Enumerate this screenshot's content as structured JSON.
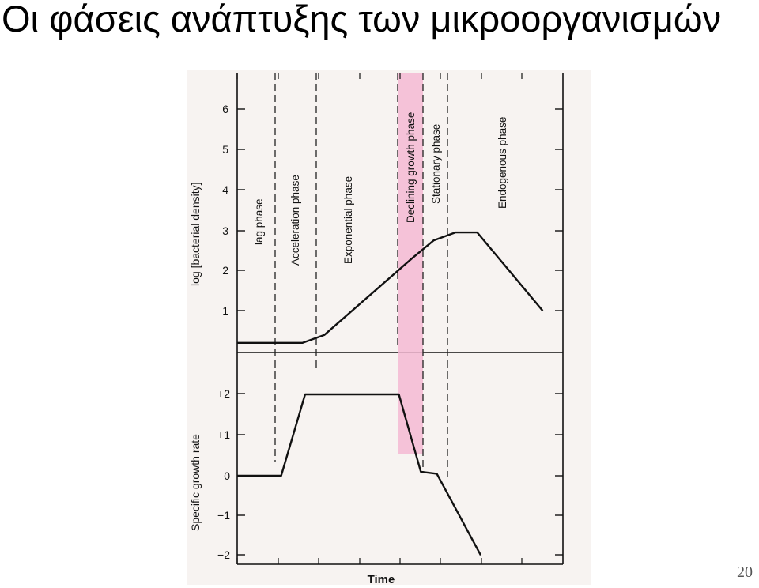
{
  "slide": {
    "title": "Οι φάσεις ανάπτυξης των μικροοργανισμών",
    "page_number": "20"
  },
  "chart_data": [
    {
      "type": "line",
      "ylabel": "log [bacterial density]",
      "ylim": [
        0,
        6.5
      ],
      "y_ticks": [
        "1",
        "2",
        "3",
        "4",
        "5",
        "6"
      ],
      "phases": [
        "lag phase",
        "Acceleration phase",
        "Exponential phase",
        "Declining growth phase",
        "Stationary phase",
        "Endogenous phase"
      ],
      "highlighted_phase": "Declining growth phase",
      "highlight_color": "#f4b8d4",
      "x": [
        0,
        1.5,
        2,
        4,
        4.5,
        5,
        5.5,
        7
      ],
      "y": [
        0.2,
        0.2,
        0.4,
        2.3,
        2.75,
        2.95,
        2.95,
        1.0
      ]
    },
    {
      "type": "line",
      "ylabel": "Specific growth rate",
      "xlabel": "Time",
      "ylim": [
        -2,
        2.9
      ],
      "y_ticks": [
        "+2",
        "+1",
        "0",
        "−1",
        "−2"
      ],
      "x": [
        0,
        1.1,
        1.7,
        4.05,
        4.6,
        5.0,
        6.1
      ],
      "y": [
        0,
        0,
        2.0,
        2.0,
        0.1,
        0.05,
        -1.95
      ]
    }
  ]
}
